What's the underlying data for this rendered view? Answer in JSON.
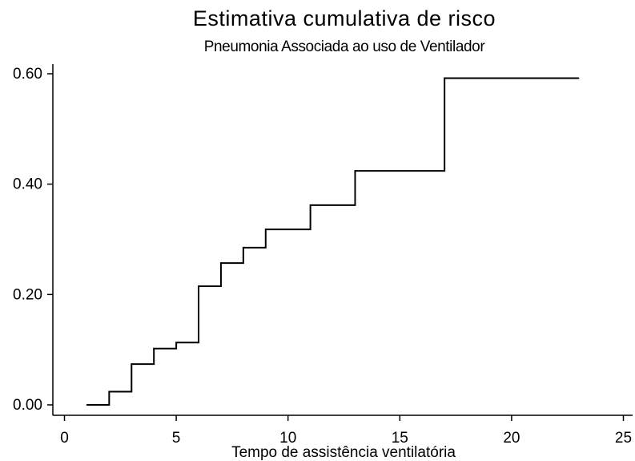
{
  "chart_data": {
    "type": "line",
    "title": "Estimativa cumulativa de risco",
    "subtitle": "Pneumonia Associada ao uso de Ventilador",
    "xlabel": "Tempo de assistência ventilatória",
    "ylabel": "",
    "xlim": [
      -0.3,
      25.2
    ],
    "ylim": [
      0,
      0.62
    ],
    "x_ticks": [
      0,
      5,
      10,
      15,
      20,
      25
    ],
    "x_tick_labels": [
      "0",
      "5",
      "10",
      "15",
      "20",
      "25"
    ],
    "y_ticks": [
      0,
      0.2,
      0.4,
      0.6
    ],
    "y_tick_labels": [
      "0.00",
      "0.20",
      "0.40",
      "0.60"
    ],
    "grid": false,
    "legend": false,
    "line_color": "#000000",
    "series": [
      {
        "style": "step-post",
        "x": [
          1,
          2,
          3,
          4,
          5,
          6,
          7,
          8,
          9,
          11,
          13,
          17,
          23
        ],
        "y": [
          0.0,
          0.024,
          0.074,
          0.102,
          0.113,
          0.215,
          0.257,
          0.285,
          0.318,
          0.362,
          0.424,
          0.592,
          0.592
        ]
      }
    ]
  }
}
